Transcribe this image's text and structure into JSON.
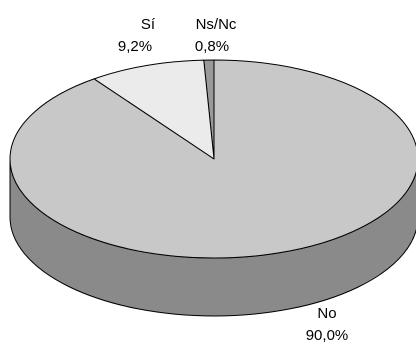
{
  "chart_data": {
    "type": "pie",
    "style": "3d",
    "title": "",
    "slices": [
      {
        "label": "No",
        "value": 90.0,
        "value_text": "90,0%",
        "color": "#c8c8c8",
        "side_color": "#8a8a8a"
      },
      {
        "label": "Sí",
        "value": 9.2,
        "value_text": "9,2%",
        "color": "#ebebeb",
        "side_color": "#b0b0b0"
      },
      {
        "label": "Ns/Nc",
        "value": 0.8,
        "value_text": "0,8%",
        "color": "#9a9a9a",
        "side_color": "#6a6a6a"
      }
    ],
    "legend": "none"
  }
}
